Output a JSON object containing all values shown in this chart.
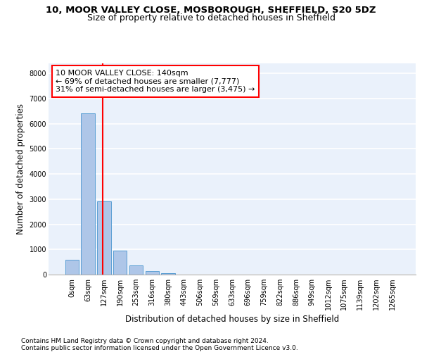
{
  "title_line1": "10, MOOR VALLEY CLOSE, MOSBOROUGH, SHEFFIELD, S20 5DZ",
  "title_line2": "Size of property relative to detached houses in Sheffield",
  "xlabel": "Distribution of detached houses by size in Sheffield",
  "ylabel": "Number of detached properties",
  "bar_labels": [
    "0sqm",
    "63sqm",
    "127sqm",
    "190sqm",
    "253sqm",
    "316sqm",
    "380sqm",
    "443sqm",
    "506sqm",
    "569sqm",
    "633sqm",
    "696sqm",
    "759sqm",
    "822sqm",
    "886sqm",
    "949sqm",
    "1012sqm",
    "1075sqm",
    "1139sqm",
    "1202sqm",
    "1265sqm"
  ],
  "bar_values": [
    580,
    6400,
    2920,
    960,
    360,
    140,
    60,
    0,
    0,
    0,
    0,
    0,
    0,
    0,
    0,
    0,
    0,
    0,
    0,
    0,
    0
  ],
  "bar_color": "#aec6e8",
  "bar_edge_color": "#5a9fd4",
  "vline_x": 1.92,
  "vline_color": "red",
  "annotation_text": "10 MOOR VALLEY CLOSE: 140sqm\n← 69% of detached houses are smaller (7,777)\n31% of semi-detached houses are larger (3,475) →",
  "annotation_box_color": "white",
  "annotation_box_edge_color": "red",
  "ylim": [
    0,
    8400
  ],
  "yticks": [
    0,
    1000,
    2000,
    3000,
    4000,
    5000,
    6000,
    7000,
    8000
  ],
  "background_color": "#eaf1fb",
  "grid_color": "white",
  "footer_text": "Contains HM Land Registry data © Crown copyright and database right 2024.\nContains public sector information licensed under the Open Government Licence v3.0.",
  "title_fontsize": 9.5,
  "subtitle_fontsize": 9,
  "axis_label_fontsize": 8.5,
  "tick_fontsize": 7,
  "annotation_fontsize": 8,
  "footer_fontsize": 6.5
}
